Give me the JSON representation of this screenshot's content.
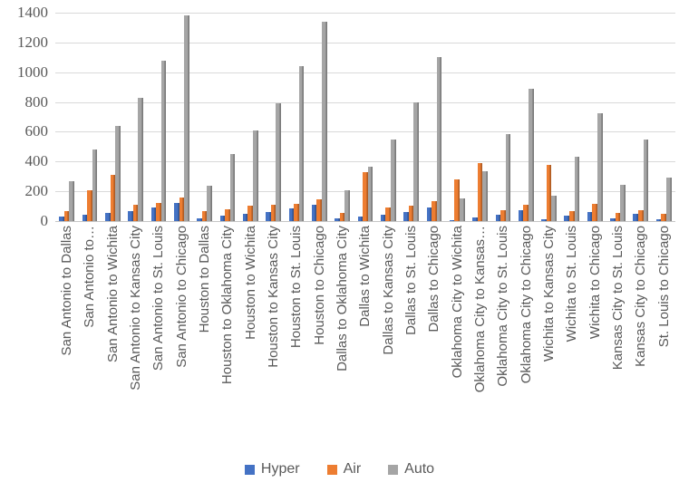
{
  "chart_data": {
    "type": "bar",
    "title": "",
    "xlabel": "",
    "ylabel": "",
    "categories": [
      "San Antonio to Dallas",
      "San Antonio to…",
      "San Antonio to Wichita",
      "San Antonio to Kansas City",
      "San Antonio to St. Louis",
      "San Antonio to Chicago",
      "Houston to Dallas",
      "Houston to Oklahoma City",
      "Houston to Wichita",
      "Houston to Kansas City",
      "Houston to St. Louis",
      "Houston to Chicago",
      "Dallas to Oklahoma City",
      "Dallas to Wichita",
      "Dallas to Kansas City",
      "Dallas to St. Louis",
      "Dallas to Chicago",
      "Oklahoma City to Wichita",
      "Oklahoma City to Kansas…",
      "Oklahoma City to St. Louis",
      "Oklahoma City to Chicago",
      "Wichita to Kansas City",
      "Wichita to St. Louis",
      "Wichita to Chicago",
      "Kansas City to St. Louis",
      "Kansas City to Chicago",
      "St. Louis to Chicago"
    ],
    "series": [
      {
        "name": "Hyper",
        "color": "#4472C4",
        "values": [
          28,
          42,
          55,
          70,
          92,
          120,
          18,
          36,
          50,
          63,
          85,
          110,
          18,
          28,
          45,
          64,
          93,
          9,
          24,
          43,
          75,
          11,
          35,
          59,
          19,
          46,
          15
        ]
      },
      {
        "name": "Air",
        "color": "#ED7D31",
        "values": [
          70,
          210,
          310,
          108,
          120,
          160,
          70,
          80,
          105,
          112,
          115,
          148,
          53,
          330,
          92,
          104,
          134,
          278,
          392,
          75,
          110,
          378,
          70,
          115,
          55,
          71,
          46
        ]
      },
      {
        "name": "Auto",
        "color": "#A5A5A5",
        "values": [
          270,
          480,
          640,
          825,
          1075,
          1380,
          240,
          450,
          610,
          790,
          1040,
          1340,
          205,
          365,
          550,
          800,
          1100,
          155,
          335,
          585,
          890,
          173,
          430,
          727,
          245,
          548,
          295
        ]
      }
    ],
    "ylim": [
      0,
      1400
    ],
    "yticks": [
      0,
      200,
      400,
      600,
      800,
      1000,
      1200,
      1400
    ],
    "grid": true,
    "legend_position": "bottom",
    "colors": {
      "gridline": "#D9D9D9",
      "axis_line": "#C6C6C6",
      "tick_text": "#595959"
    }
  }
}
